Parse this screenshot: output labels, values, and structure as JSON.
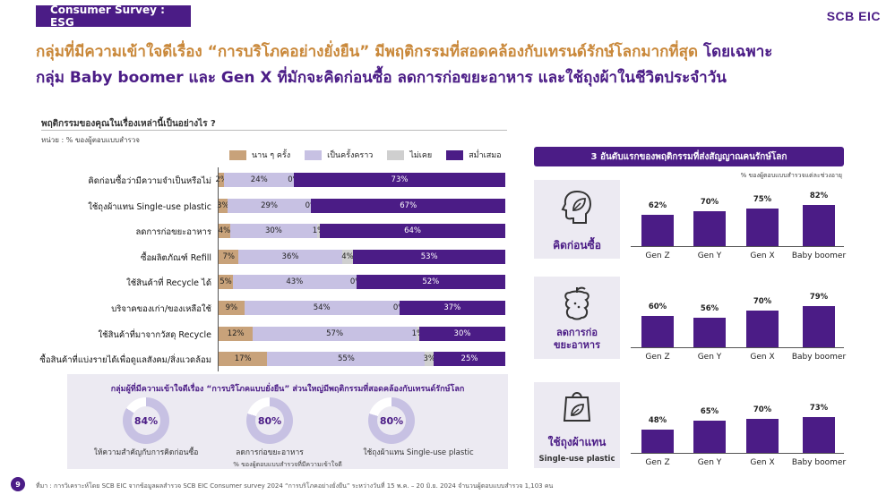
{
  "header": {
    "tag": "Consumer Survey : ESG",
    "logo": "SCB EIC"
  },
  "headline": {
    "orange": "กลุ่มที่มีความเข้าใจดีเรื่อง “การบริโภคอย่างยั่งยืน” มีพฤติกรรมที่สอดคล้องกับเทรนด์รักษ์โลกมากที่สุด",
    "purple1": " โดยเฉพาะ",
    "purple2": "กลุ่ม Baby boomer และ Gen X ที่มักจะคิดก่อนซื้อ ลดการก่อขยะอาหาร และใช้ถุงผ้าในชีวิตประจำวัน"
  },
  "question": "พฤติกรรมของคุณในเรื่องเหล่านี้เป็นอย่างไร ?",
  "unit": "หน่วย : % ของผู้ตอบแบบสำรวจ",
  "colors": {
    "rare": "#c8a27a",
    "sometimes": "#c7c1e3",
    "never": "#cfcfcf",
    "always": "#4b1c86"
  },
  "chart_data": [
    {
      "type": "bar",
      "orientation": "horizontal-stacked-100",
      "legend": [
        "นาน ๆ ครั้ง",
        "เป็นครั้งคราว",
        "ไม่เคย",
        "สม่ำเสมอ"
      ],
      "categories": [
        "คิดก่อนซื้อว่ามีความจำเป็นหรือไม่",
        "ใช้ถุงผ้าแทน Single-use plastic",
        "ลดการก่อขยะอาหาร",
        "ซื้อผลิตภัณฑ์ Refill",
        "ใช้สินค้าที่ Recycle ได้",
        "บริจาคของเก่า/ของเหลือใช้",
        "ใช้สินค้าที่มาจากวัสดุ Recycle",
        "ซื้อสินค้าที่แบ่งรายได้เพื่อดูแลสังคม/สิ่งแวดล้อม"
      ],
      "series": [
        {
          "name": "นาน ๆ ครั้ง",
          "values": [
            2,
            3,
            4,
            7,
            5,
            9,
            12,
            17
          ]
        },
        {
          "name": "เป็นครั้งคราว",
          "values": [
            24,
            29,
            30,
            36,
            43,
            54,
            57,
            55
          ]
        },
        {
          "name": "ไม่เคย",
          "values": [
            0,
            0,
            1,
            4,
            0,
            0,
            1,
            3
          ]
        },
        {
          "name": "สม่ำเสมอ",
          "values": [
            73,
            67,
            64,
            53,
            52,
            37,
            30,
            25
          ]
        }
      ],
      "value_format": "{v}%"
    },
    {
      "type": "pie",
      "variant": "donut",
      "title": "กลุ่มผู้ที่มีความเข้าใจดีเรื่อง “การบริโภคแบบยั่งยืน” ส่วนใหญ่มีพฤติกรรมที่สอดคล้องกับเทรนด์รักษ์โลก",
      "categories": [
        "ให้ความสำคัญกับการคิดก่อนซื้อ",
        "ลดการก่อขยะอาหาร",
        "ใช้ถุงผ้าแทน Single-use plastic"
      ],
      "values": [
        84,
        80,
        80
      ],
      "note": "% ของผู้ตอบแบบสำรวจที่มีความเข้าใจดี"
    },
    {
      "type": "bar",
      "title": "คิดก่อนซื้อ",
      "categories": [
        "Gen Z",
        "Gen Y",
        "Gen X",
        "Baby boomer"
      ],
      "values": [
        62,
        70,
        75,
        82
      ],
      "value_format": "{v}%"
    },
    {
      "type": "bar",
      "title": "ลดการก่อขยะอาหาร",
      "categories": [
        "Gen Z",
        "Gen Y",
        "Gen X",
        "Baby boomer"
      ],
      "values": [
        60,
        56,
        70,
        79
      ],
      "value_format": "{v}%"
    },
    {
      "type": "bar",
      "title": "ใช้ถุงผ้าแทน Single-use plastic",
      "categories": [
        "Gen Z",
        "Gen Y",
        "Gen X",
        "Baby boomer"
      ],
      "values": [
        48,
        65,
        70,
        73
      ],
      "value_format": "{v}%"
    }
  ],
  "right_panel": {
    "title": "3 อันดับแรกของพฤติกรรมที่ส่งสัญญาณคนรักษ์โลก",
    "note": "% ของผู้ตอบแบบสำรวจแต่ละช่วงอายุ",
    "icons": [
      {
        "label": "คิดก่อนซื้อ",
        "icon": "head-leaf-icon"
      },
      {
        "label": "ลดการก่อขยะอาหาร",
        "line1": "ลดการก่อ",
        "line2": "ขยะอาหาร",
        "icon": "apple-core-icon"
      },
      {
        "label": "ใช้ถุงผ้าแทน Single-use plastic",
        "line1": "ใช้ถุงผ้าแทน",
        "line2": "Single-use plastic",
        "icon": "bag-leaf-icon"
      }
    ]
  },
  "footer": {
    "page": "9",
    "source": "ที่มา : การวิเคราะห์โดย SCB EIC จากข้อมูลผลสำรวจ SCB EIC Consumer survey 2024 “การบริโภคอย่างยั่งยืน” ระหว่างวันที่ 15 พ.ค. – 20 มิ.ย. 2024 จำนวนผู้ตอบแบบสำรวจ 1,103 คน"
  }
}
